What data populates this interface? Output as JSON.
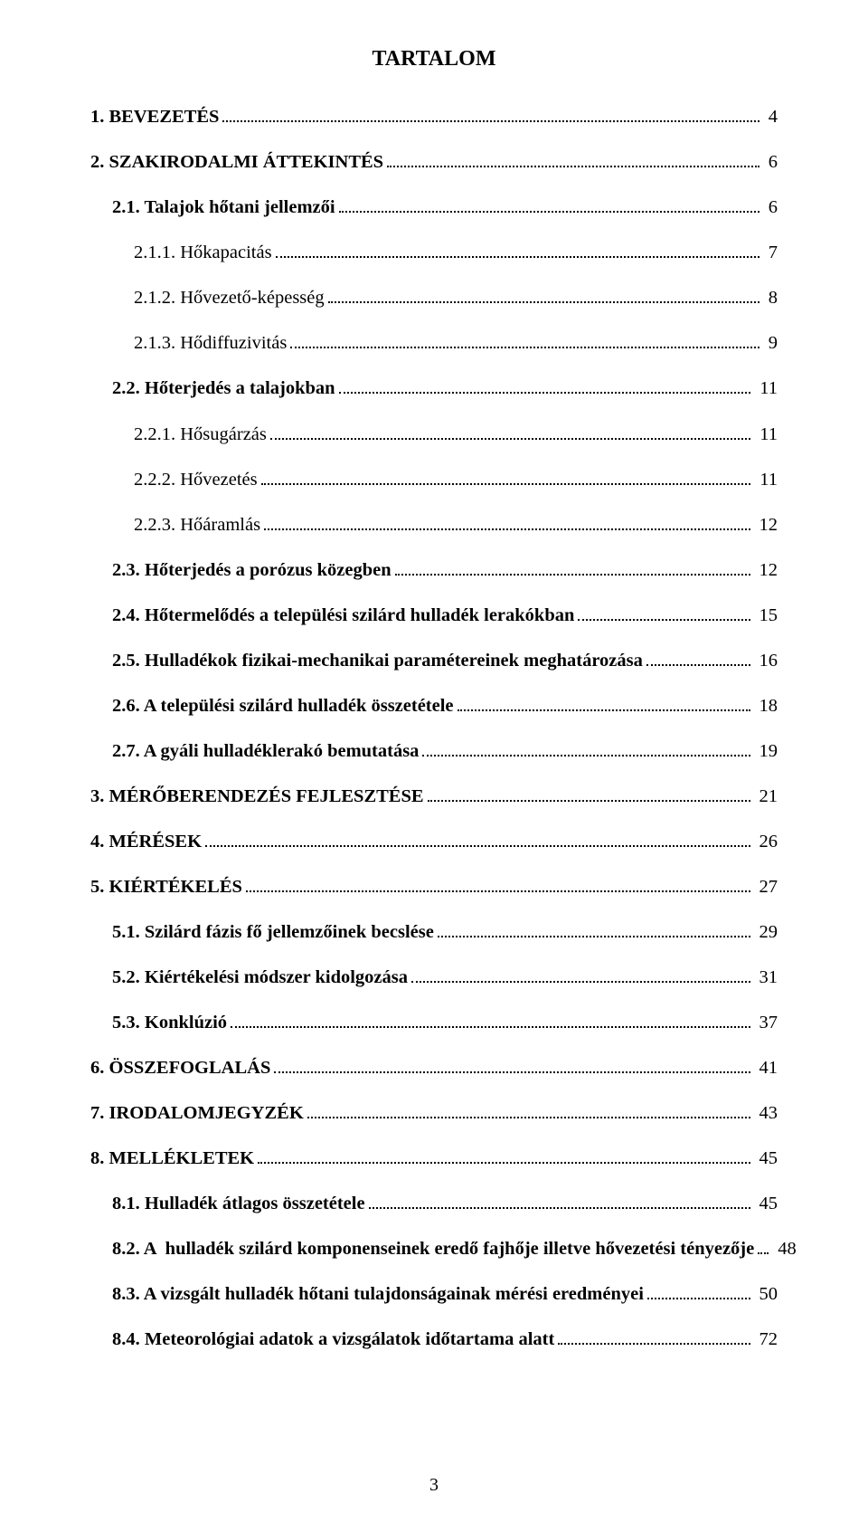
{
  "colors": {
    "background": "#ffffff",
    "text": "#000000",
    "leader": "#000000"
  },
  "typography": {
    "font_family": "Times New Roman",
    "title_fontsize_pt": 18,
    "body_fontsize_pt": 15,
    "line_spacing": 1.25
  },
  "title": "TARTALOM",
  "page_number": "3",
  "entries": [
    {
      "indent": 0,
      "bold": true,
      "sc": true,
      "label": "1. BEVEZETÉS",
      "page": "4"
    },
    {
      "indent": 0,
      "bold": true,
      "sc": true,
      "label": "2. SZAKIRODALMI ÁTTEKINTÉS",
      "page": "6"
    },
    {
      "indent": 1,
      "bold": true,
      "sc": false,
      "label": "2.1. Talajok hőtani jellemzői",
      "page": "6"
    },
    {
      "indent": 2,
      "bold": false,
      "sc": false,
      "label": "2.1.1. Hőkapacitás",
      "page": "7"
    },
    {
      "indent": 2,
      "bold": false,
      "sc": false,
      "label": "2.1.2. Hővezető-képesség",
      "page": "8"
    },
    {
      "indent": 2,
      "bold": false,
      "sc": false,
      "label": "2.1.3. Hődiffuzivitás",
      "page": "9"
    },
    {
      "indent": 1,
      "bold": true,
      "sc": false,
      "label": "2.2. Hőterjedés a talajokban",
      "page": "11"
    },
    {
      "indent": 2,
      "bold": false,
      "sc": false,
      "label": "2.2.1. Hősugárzás",
      "page": "11"
    },
    {
      "indent": 2,
      "bold": false,
      "sc": false,
      "label": "2.2.2. Hővezetés",
      "page": "11"
    },
    {
      "indent": 2,
      "bold": false,
      "sc": false,
      "label": "2.2.3. Hőáramlás",
      "page": "12"
    },
    {
      "indent": 1,
      "bold": true,
      "sc": false,
      "label": "2.3. Hőterjedés a porózus közegben",
      "page": "12"
    },
    {
      "indent": 1,
      "bold": true,
      "sc": false,
      "label": "2.4. Hőtermelődés a települési szilárd hulladék lerakókban",
      "page": "15"
    },
    {
      "indent": 1,
      "bold": true,
      "sc": false,
      "label": "2.5. Hulladékok fizikai-mechanikai paramétereinek meghatározása",
      "page": "16"
    },
    {
      "indent": 1,
      "bold": true,
      "sc": false,
      "label": "2.6. A települési szilárd hulladék összetétele",
      "page": "18"
    },
    {
      "indent": 1,
      "bold": true,
      "sc": false,
      "label": "2.7. A gyáli hulladéklerakó bemutatása",
      "page": "19"
    },
    {
      "indent": 0,
      "bold": true,
      "sc": true,
      "label": "3. MÉRŐBERENDEZÉS FEJLESZTÉSE",
      "page": "21"
    },
    {
      "indent": 0,
      "bold": true,
      "sc": true,
      "label": "4. MÉRÉSEK",
      "page": "26"
    },
    {
      "indent": 0,
      "bold": true,
      "sc": true,
      "label": "5. KIÉRTÉKELÉS",
      "page": "27"
    },
    {
      "indent": 1,
      "bold": true,
      "sc": false,
      "label": "5.1. Szilárd fázis fő jellemzőinek becslése",
      "page": "29"
    },
    {
      "indent": 1,
      "bold": true,
      "sc": false,
      "label": "5.2. Kiértékelési módszer kidolgozása",
      "page": "31"
    },
    {
      "indent": 1,
      "bold": true,
      "sc": false,
      "label": "5.3. Konklúzió",
      "page": "37"
    },
    {
      "indent": 0,
      "bold": true,
      "sc": true,
      "label": "6. ÖSSZEFOGLALÁS",
      "page": "41"
    },
    {
      "indent": 0,
      "bold": true,
      "sc": true,
      "label": "7. IRODALOMJEGYZÉK",
      "page": "43"
    },
    {
      "indent": 0,
      "bold": true,
      "sc": true,
      "label": "8. MELLÉKLETEK",
      "page": "45"
    },
    {
      "indent": 1,
      "bold": true,
      "sc": false,
      "label": "8.1. Hulladék átlagos összetétele",
      "page": "45"
    },
    {
      "indent": 1,
      "bold": true,
      "sc": false,
      "label": "8.2. A  hulladék szilárd komponenseinek eredő fajhője illetve hővezetési tényezője",
      "page": "48"
    },
    {
      "indent": 1,
      "bold": true,
      "sc": false,
      "label": "8.3. A vizsgált hulladék hőtani tulajdonságainak mérési eredményei",
      "page": "50"
    },
    {
      "indent": 1,
      "bold": true,
      "sc": false,
      "label": "8.4. Meteorológiai adatok a vizsgálatok időtartama alatt",
      "page": "72"
    }
  ]
}
